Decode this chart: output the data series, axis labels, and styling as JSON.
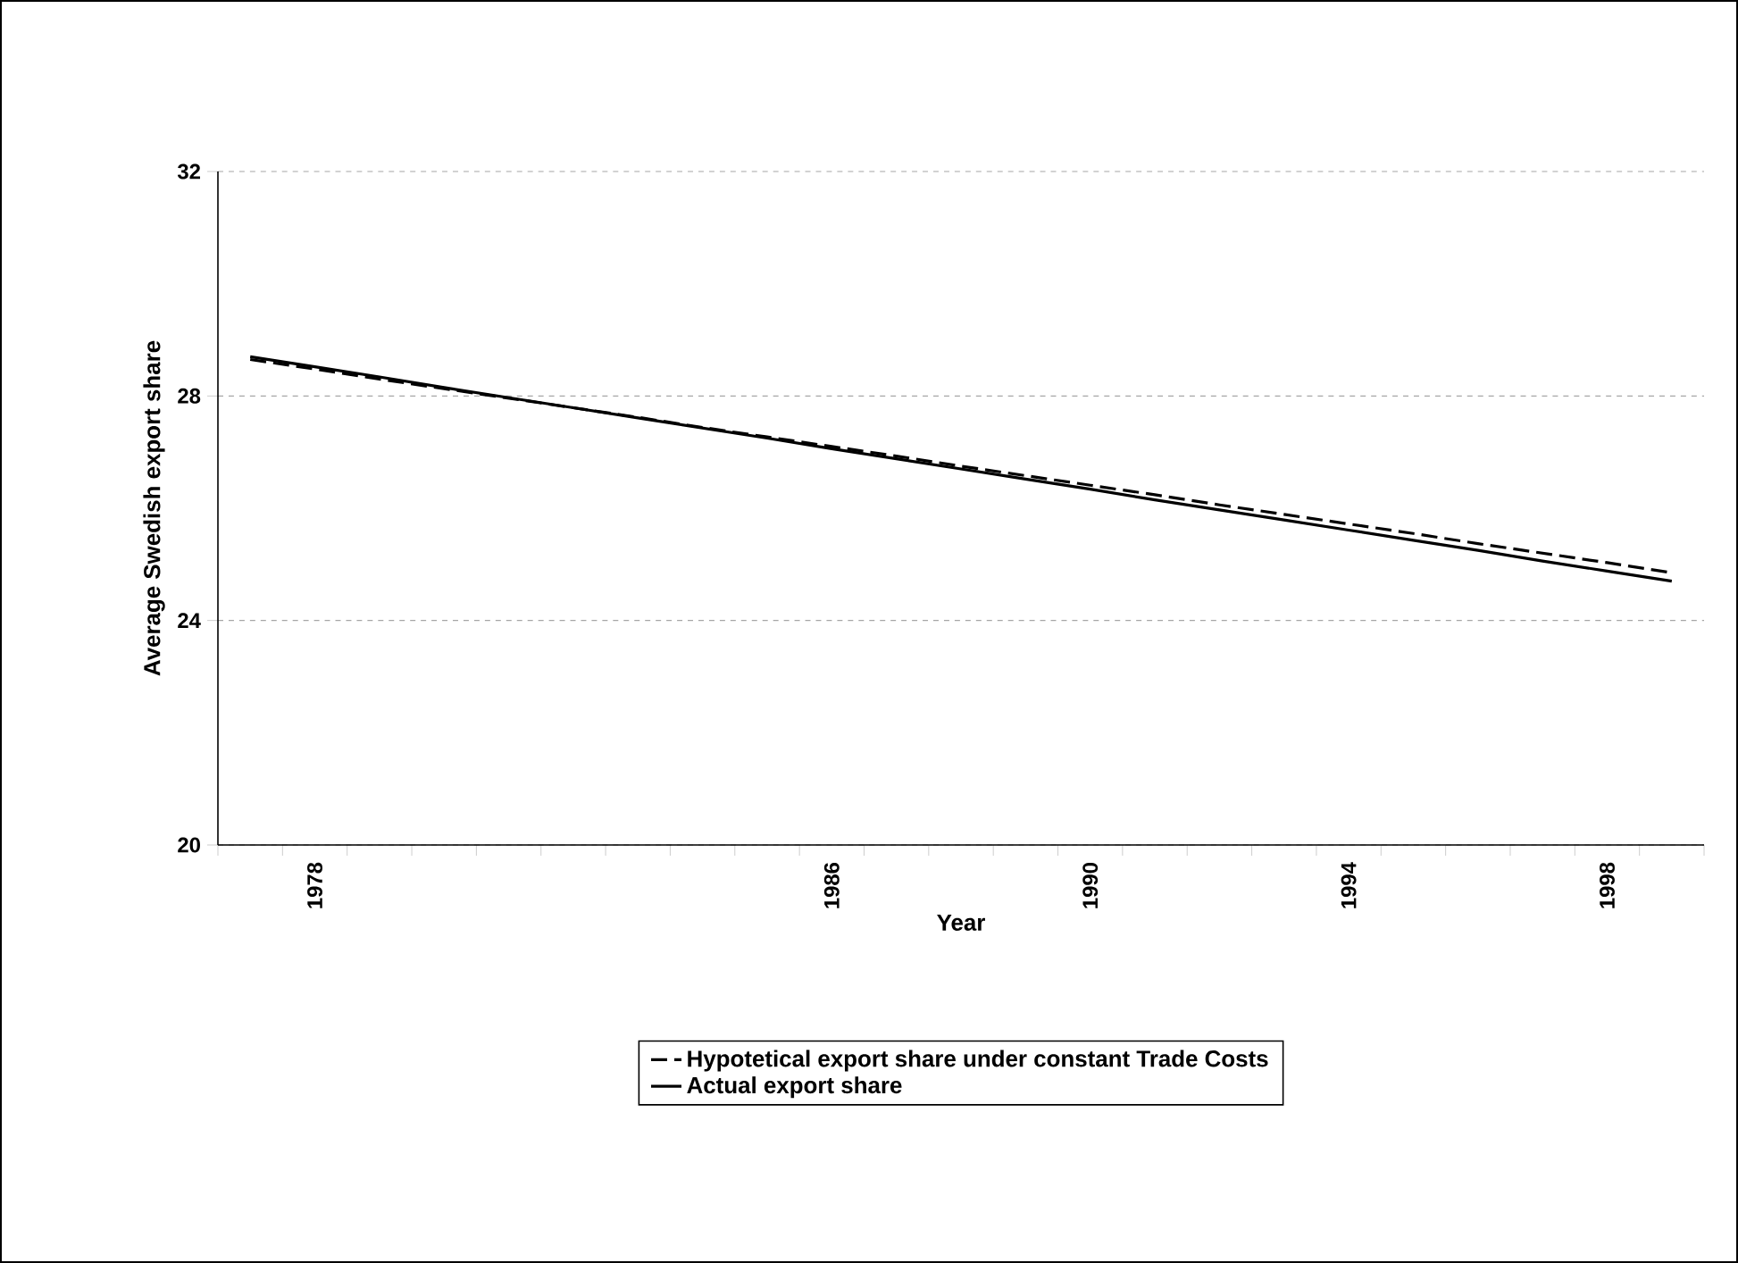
{
  "chart_data": {
    "type": "line",
    "xlabel": "Year",
    "ylabel": "Average Swedish export share",
    "categories": [
      null,
      "1978",
      null,
      null,
      null,
      null,
      null,
      null,
      null,
      "1986",
      null,
      null,
      null,
      "1990",
      null,
      null,
      null,
      "1994",
      null,
      null,
      null,
      "1998",
      null
    ],
    "series": [
      {
        "name": "Hypotetical export share under constant Trade Costs",
        "color": "#000000",
        "line_style": "dashed",
        "values": [
          28.65,
          28.48,
          28.3,
          28.13,
          27.96,
          27.79,
          27.62,
          27.44,
          27.27,
          27.1,
          26.93,
          26.75,
          26.58,
          26.41,
          26.24,
          26.06,
          25.89,
          25.72,
          25.55,
          25.37,
          25.2,
          25.03,
          24.85
        ]
      },
      {
        "name": "Actual export share",
        "color": "#000000",
        "line_style": "solid",
        "values": [
          28.7,
          28.52,
          28.34,
          28.15,
          27.97,
          27.79,
          27.61,
          27.43,
          27.25,
          27.06,
          26.88,
          26.7,
          26.52,
          26.34,
          26.15,
          25.97,
          25.79,
          25.61,
          25.43,
          25.25,
          25.06,
          24.88,
          24.7
        ]
      }
    ],
    "ylim": [
      20,
      32
    ],
    "yticks": [
      20,
      24,
      28,
      32
    ],
    "grid": "y",
    "legend": "bottom"
  }
}
